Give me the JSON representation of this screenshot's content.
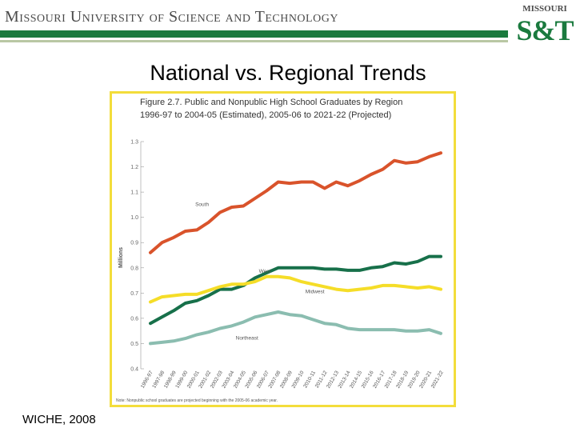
{
  "header": {
    "institution": "Missouri University of Science and Technology",
    "logo_top": "MISSOURI",
    "logo_main": "S&T"
  },
  "slide": {
    "title": "National vs. Regional Trends",
    "source": "WICHE, 2008"
  },
  "colors": {
    "green": "#1a7a3e",
    "frame": "#f3dd3b",
    "south": "#d9532b",
    "west": "#17704a",
    "midwest": "#f5dd28",
    "northeast": "#8bbdb0"
  },
  "chart_data": {
    "type": "line",
    "title_line1": "Figure 2.7.  Public and Nonpublic High School Graduates by Region",
    "title_line2": "1996-97 to 2004-05 (Estimated), 2005-06 to 2021-22 (Projected)",
    "ylabel": "Millions",
    "ylim": [
      0.4,
      1.3
    ],
    "yticks": [
      "1.3",
      "1.2",
      "1.1",
      "1.0",
      "0.9",
      "0.8",
      "0.7",
      "0.6",
      "0.5",
      "0.4"
    ],
    "categories": [
      "1996-97",
      "1997-98",
      "1998-99",
      "1999-00",
      "2000-01",
      "2001-02",
      "2002-03",
      "2003-04",
      "2004-05",
      "2005-06",
      "2006-07",
      "2007-08",
      "2008-09",
      "2009-10",
      "2010-11",
      "2011-12",
      "2012-13",
      "2013-14",
      "2014-15",
      "2015-16",
      "2016-17",
      "2017-18",
      "2018-19",
      "2019-20",
      "2020-21",
      "2021-22"
    ],
    "series": [
      {
        "name": "South",
        "color": "#d9532b",
        "values": [
          0.86,
          0.9,
          0.92,
          0.945,
          0.95,
          0.98,
          1.02,
          1.04,
          1.045,
          1.075,
          1.105,
          1.14,
          1.135,
          1.14,
          1.14,
          1.115,
          1.14,
          1.125,
          1.145,
          1.17,
          1.19,
          1.225,
          1.215,
          1.22,
          1.24,
          1.255
        ]
      },
      {
        "name": "West",
        "color": "#17704a",
        "values": [
          0.58,
          0.605,
          0.63,
          0.66,
          0.67,
          0.69,
          0.715,
          0.715,
          0.73,
          0.76,
          0.78,
          0.8,
          0.8,
          0.8,
          0.8,
          0.795,
          0.795,
          0.79,
          0.79,
          0.8,
          0.805,
          0.82,
          0.815,
          0.825,
          0.845,
          0.845
        ]
      },
      {
        "name": "Midwest",
        "color": "#f5dd28",
        "values": [
          0.665,
          0.685,
          0.69,
          0.695,
          0.695,
          0.71,
          0.725,
          0.735,
          0.735,
          0.745,
          0.765,
          0.765,
          0.76,
          0.745,
          0.735,
          0.725,
          0.715,
          0.71,
          0.715,
          0.72,
          0.73,
          0.73,
          0.725,
          0.72,
          0.725,
          0.715
        ]
      },
      {
        "name": "Northeast",
        "color": "#8bbdb0",
        "values": [
          0.5,
          0.505,
          0.51,
          0.52,
          0.535,
          0.545,
          0.56,
          0.57,
          0.585,
          0.605,
          0.615,
          0.625,
          0.615,
          0.61,
          0.595,
          0.58,
          0.575,
          0.56,
          0.555,
          0.555,
          0.555,
          0.555,
          0.55,
          0.55,
          0.555,
          0.54
        ]
      }
    ],
    "series_labels": [
      "South",
      "West",
      "Midwest",
      "Northeast"
    ],
    "note": "Note: Nonpublic school graduates are projected beginning with the 2005-06 academic year.",
    "grid": false,
    "legend": "inline labels"
  }
}
